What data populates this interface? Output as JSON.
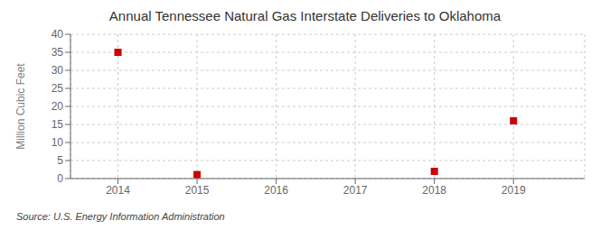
{
  "chart_data": {
    "type": "scatter",
    "title": "Annual Tennessee Natural Gas Interstate Deliveries to Oklahoma",
    "ylabel": "Million Cubic Feet",
    "annotation": "Source: U.S. Energy Information Administration",
    "x": [
      2014,
      2015,
      2016,
      2017,
      2018,
      2019
    ],
    "values": [
      35.0,
      1.1,
      null,
      null,
      2.0,
      16.0
    ],
    "color": "#cc0000",
    "marker": "square",
    "xlim": [
      2013.4,
      2019.9
    ],
    "ylim": [
      0,
      40
    ],
    "xticks": [
      2014,
      2015,
      2016,
      2017,
      2018,
      2019
    ],
    "yticks": [
      0,
      5,
      10,
      15,
      20,
      25,
      30,
      35,
      40
    ],
    "grid": true
  }
}
